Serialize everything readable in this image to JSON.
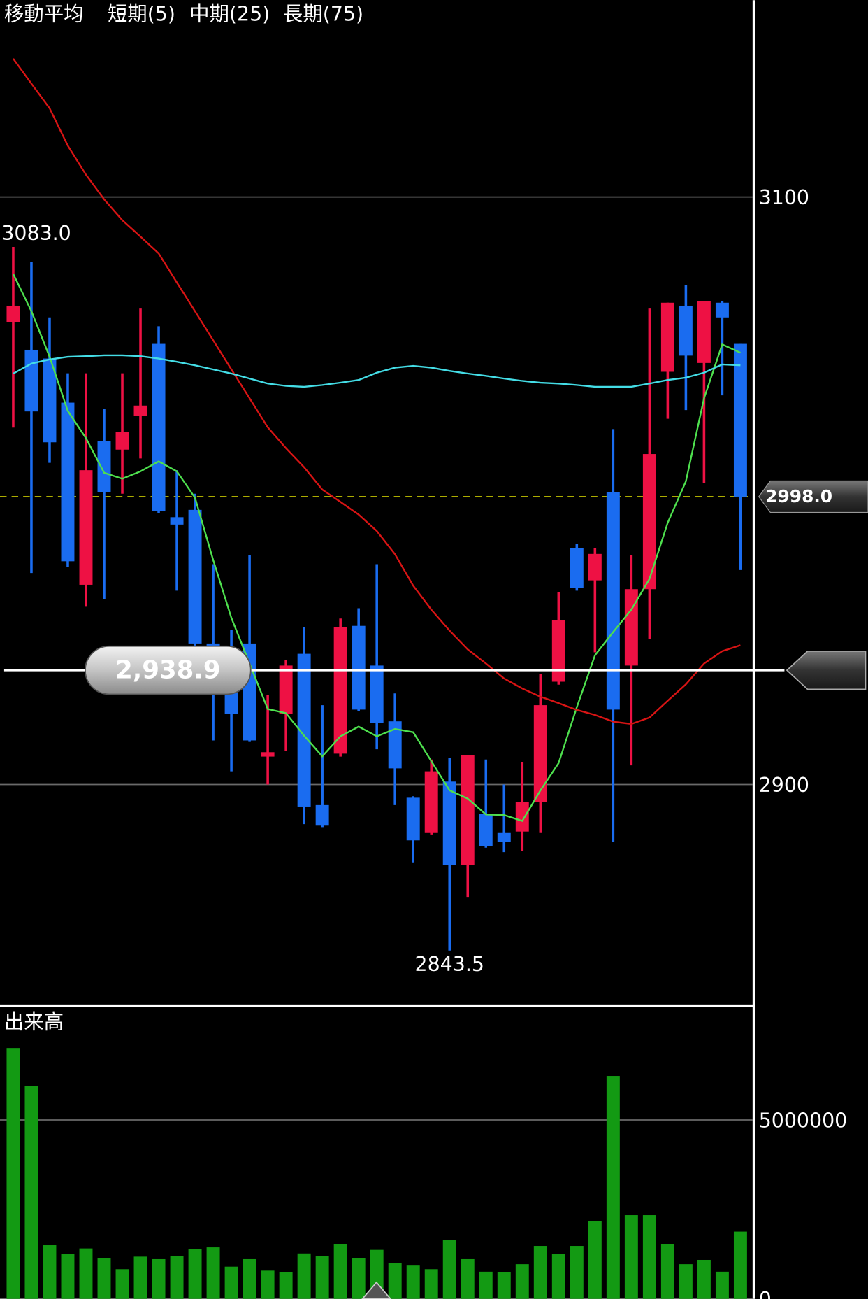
{
  "chart_data": [
    {
      "type": "candlestick",
      "title": "移動平均",
      "open": [
        3057.5,
        3048,
        3045,
        3030,
        2968,
        3017,
        3014,
        3025.5,
        3050,
        2991,
        2993.5,
        2948,
        2935.5,
        2948,
        2909.5,
        2924,
        2944.5,
        2893,
        2910.5,
        2954,
        2940.5,
        2921.5,
        2895.5,
        2883.5,
        2901,
        2872.5,
        2890,
        2883.5,
        2884,
        2894,
        2935,
        2980.5,
        2969.5,
        2999.5,
        2940.5,
        2966.5,
        3040.5,
        3063,
        3043.5,
        3064,
        3050
      ],
      "high": [
        3083,
        3078,
        3059,
        3040,
        3040,
        3028,
        3040,
        3062,
        3056,
        3007,
        2999,
        2975,
        2952.5,
        2978,
        2930.5,
        2942.5,
        2953.5,
        2927,
        2956.5,
        2960,
        2975,
        2931,
        2896,
        2908.5,
        2909,
        2910,
        2908.5,
        2900,
        2907.5,
        2937.5,
        2965.5,
        2982,
        2980.5,
        3021,
        2978,
        3062,
        3064,
        3070,
        3064.5,
        3064.5,
        3050
      ],
      "low": [
        3021.5,
        2972,
        3009.5,
        2974,
        2960.5,
        2963,
        2999,
        3011,
        2992.5,
        2966,
        2944,
        2915,
        2904.5,
        2914.5,
        2900,
        2911.5,
        2886.5,
        2885.5,
        2909.5,
        2925,
        2912,
        2893,
        2873.5,
        2883,
        2843.5,
        2861.5,
        2878.5,
        2877,
        2877.5,
        2883.5,
        2934,
        2966,
        2945,
        2880.5,
        2906.5,
        2949.5,
        3024.5,
        3027.5,
        3002.5,
        3032.5,
        2973
      ],
      "close": [
        3063,
        3027,
        3016.5,
        2976,
        3007,
        2999.5,
        3020,
        3029,
        2993,
        2988.5,
        2948,
        2932.5,
        2924,
        2915,
        2911,
        2940.5,
        2892.5,
        2886,
        2953.5,
        2925.5,
        2921,
        2905.5,
        2881,
        2904.5,
        2872.5,
        2910,
        2879,
        2880.5,
        2894,
        2927,
        2956,
        2967,
        2978.5,
        2925.5,
        2966.5,
        3012.5,
        3064,
        3046,
        3064.5,
        3059,
        2998
      ],
      "up_color": "#ee1144",
      "down_color": "#1a6cf0",
      "series": [
        {
          "name": "短期(5)",
          "color": "#4ee04e",
          "values": [
            3073.8,
            3061.1,
            3045.6,
            3027.2,
            3017.9,
            3006.1,
            3004.1,
            3006.6,
            3010.0,
            3006.6,
            2997.6,
            2976.4,
            2956.7,
            2941.2,
            2925.7,
            2924.3,
            2916.6,
            2909.6,
            2916.4,
            2919.7,
            2916.4,
            2918.9,
            2917.8,
            2907.9,
            2898.0,
            2895.2,
            2889.8,
            2889.6,
            2887.6,
            2898.0,
            2907.3,
            2926.3,
            2944.0,
            2951.9,
            2959.5,
            2970.0,
            2989.1,
            3003.2,
            3031.5,
            3049.8,
            3047.0
          ]
        },
        {
          "name": "中期(25)",
          "color": "#d81414",
          "values": [
            3147.1,
            3138.6,
            3130.2,
            3117.5,
            3107.6,
            3099.2,
            3092.1,
            3086.5,
            3080.8,
            3070.9,
            3061.1,
            3051.2,
            3041.3,
            3031.5,
            3021.6,
            3014.5,
            3008.0,
            3000.4,
            2996.2,
            2991.9,
            2986.3,
            2978.4,
            2967.7,
            2959.5,
            2952.4,
            2946.0,
            2941.2,
            2936.1,
            2932.7,
            2929.9,
            2927.7,
            2925.4,
            2923.7,
            2921.4,
            2920.6,
            2922.8,
            2928.5,
            2934.1,
            2941.2,
            2945.4,
            2947.4
          ]
        },
        {
          "name": "長期(75)",
          "color": "#44dde6",
          "values": [
            3039.9,
            3043.3,
            3044.7,
            3045.6,
            3045.8,
            3046.1,
            3046.1,
            3045.8,
            3045.0,
            3043.9,
            3042.7,
            3041.3,
            3039.9,
            3038.2,
            3036.5,
            3035.7,
            3035.4,
            3036.0,
            3036.8,
            3037.7,
            3040.2,
            3041.9,
            3042.5,
            3041.9,
            3040.8,
            3039.9,
            3039.1,
            3038.2,
            3037.4,
            3036.8,
            3036.5,
            3036.0,
            3035.4,
            3035.4,
            3035.4,
            3036.5,
            3037.7,
            3038.5,
            3040.2,
            3043.0,
            3042.7
          ]
        }
      ],
      "ylim": [
        2825,
        3167
      ],
      "yticks": [
        2900,
        3100
      ],
      "grid": true,
      "high_label": {
        "value": 3083,
        "label": "3083.0"
      },
      "low_label": 2843.5,
      "last_price": {
        "value": 2998,
        "label": "2998.0"
      },
      "crosshair": {
        "value": 2938.9,
        "label": "2,938.9"
      }
    },
    {
      "type": "bar",
      "title": "出来高",
      "color": "#139a13",
      "values": [
        7010000,
        5950000,
        1500000,
        1250000,
        1410000,
        1130000,
        830000,
        1180000,
        1110000,
        1200000,
        1390000,
        1440000,
        900000,
        1110000,
        790000,
        740000,
        1270000,
        1200000,
        1530000,
        1130000,
        1370000,
        1000000,
        930000,
        830000,
        1640000,
        1110000,
        760000,
        740000,
        970000,
        1480000,
        1250000,
        1480000,
        2180000,
        6230000,
        2340000,
        2340000,
        1530000,
        970000,
        1090000,
        760000,
        1880000
      ],
      "ylim": [
        0,
        8170000
      ],
      "yticks": [
        0,
        5000000
      ],
      "grid": true
    }
  ]
}
